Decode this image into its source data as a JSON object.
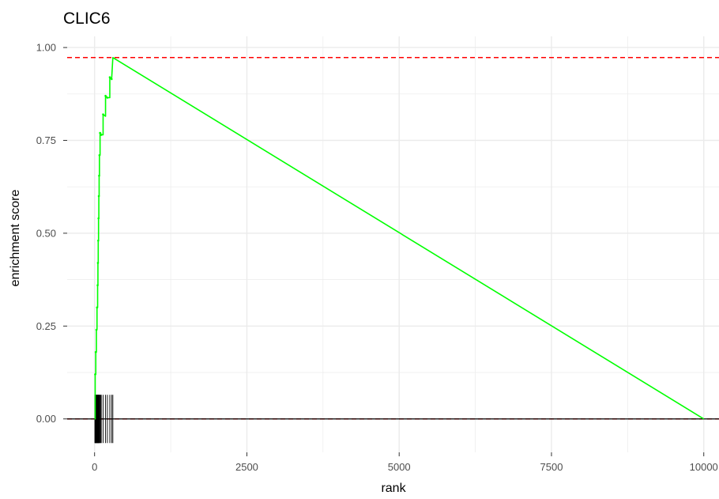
{
  "chart_data": {
    "type": "line",
    "title": "CLIC6",
    "xlabel": "rank",
    "ylabel": "enrichment score",
    "xlim": [
      -450,
      10250
    ],
    "ylim": [
      -0.09,
      1.03
    ],
    "x_ticks": [
      0,
      2500,
      5000,
      7500,
      10000
    ],
    "x_tick_labels": [
      "0",
      "2500",
      "5000",
      "7500",
      "10000"
    ],
    "y_ticks": [
      0,
      0.25,
      0.5,
      0.75,
      1.0
    ],
    "y_tick_labels": [
      "0.00",
      "0.25",
      "0.50",
      "0.75",
      "1.00"
    ],
    "grid": true,
    "legend": "none",
    "colors": {
      "curve": "#00ff00",
      "reference_lines": "#ff0000",
      "hits": "#000000",
      "grid": "#ebebeb"
    },
    "series": [
      {
        "x": [
          0,
          10,
          10,
          20,
          20,
          30,
          30,
          40,
          40,
          50,
          50,
          55,
          55,
          60,
          60,
          65,
          65,
          70,
          70,
          75,
          75,
          80,
          80,
          90,
          90,
          100,
          100,
          110,
          110,
          140,
          140,
          180,
          180,
          210,
          210,
          250,
          250,
          280,
          280,
          300,
          10000
        ],
        "y": [
          0,
          0,
          0.12,
          0.12,
          0.18,
          0.18,
          0.24,
          0.24,
          0.3,
          0.3,
          0.36,
          0.36,
          0.42,
          0.42,
          0.48,
          0.48,
          0.54,
          0.54,
          0.6,
          0.6,
          0.655,
          0.655,
          0.71,
          0.71,
          0.77,
          0.77,
          0.765,
          0.765,
          0.765,
          0.765,
          0.82,
          0.815,
          0.87,
          0.865,
          0.865,
          0.865,
          0.92,
          0.915,
          0.915,
          0.973,
          0
        ]
      }
    ],
    "reference_lines": [
      0.973,
      0
    ],
    "zero_line": 0,
    "hits": {
      "positions": [
        5,
        10,
        15,
        20,
        25,
        30,
        35,
        40,
        45,
        50,
        55,
        60,
        65,
        70,
        75,
        80,
        90,
        100,
        110,
        140,
        180,
        210,
        250,
        280,
        300
      ],
      "y_range": [
        -0.065,
        0.065
      ]
    }
  }
}
